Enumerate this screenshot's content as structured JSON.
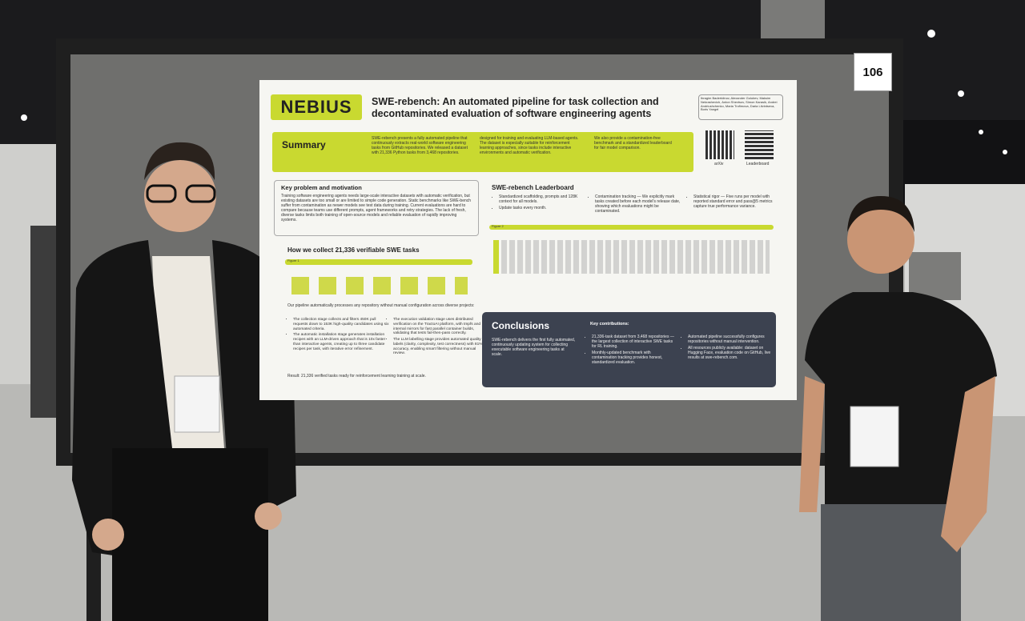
{
  "board_number": "106",
  "poster": {
    "logo": "NEBIUS",
    "title": "SWE-rebench: An automated pipeline for task collection and decontaminated evaluation of software engineering agents",
    "authors": "Ibragim Badertdinov, Alexander Golubev, Maksim Nekrashevich, Anton Shevtsov, Simon Karasik, Andrei Andriushchenko, Maria Trofimova, Daria Litvintseva, Boris Yangel",
    "summary": {
      "heading": "Summary",
      "columns": [
        "SWE-rebench presents a fully automated pipeline that continuously extracts real-world software engineering tasks from GitHub repositories. We released a dataset with 21,336 Python tasks from 3,468 repositories.",
        "designed for training and evaluating LLM-based agents. The dataset is especially suitable for reinforcement learning approaches, since tasks include interactive environments and automatic verification.",
        "We also provide a contamination-free benchmark and a standardized leaderboard for fair model comparison."
      ]
    },
    "qr_labels": [
      "arXiv",
      "Leaderboard"
    ],
    "motivation": {
      "heading": "Key problem and motivation",
      "text": "Training software engineering agents needs large-scale interactive datasets with automatic verification, but existing datasets are too small or are limited to simple code generation. Static benchmarks like SWE-bench suffer from contamination as newer models see test data during training. Current evaluations are hard to compare because teams use different prompts, agent frameworks and retry strategies. The lack of fresh, diverse tasks limits both training of open-source models and reliable evaluation of rapidly improving systems."
    },
    "collect": {
      "heading": "How we collect 21,336 verifiable SWE tasks",
      "figure": "Figure 1",
      "intro": "Our pipeline automatically processes any repository without manual configuration across diverse projects:",
      "bullets": [
        "The collection stage collects and filters 450K pull requests down to 153K high-quality candidates using six automated criteria.",
        "The automatic installation stage generates installation recipes with an LLM-driven approach that is 10x faster than interactive agents, creating up to three candidate recipes per task, with iterative error refinement.",
        "The execution validation stage uses distributed verification on the TractoAI platform, with tmpfs and internal mirrors for fast parallel container builds, validating that tests fail-then-pass correctly.",
        "The LLM labelling stage provides automated quality labels (clarity, complexity, test correctness) with 81% accuracy, enabling smart filtering without manual review."
      ],
      "result": "Result: 21,336 verified tasks ready for reinforcement learning training at scale."
    },
    "leaderboard": {
      "heading": "SWE-rebench Leaderboard",
      "figure": "Figure 2",
      "bullets": [
        "Standardized scaffolding, prompts and 128K context for all models.",
        "Update tasks every month.",
        "Contamination tracking — We explicitly mark tasks created before each model's release date, showing which evaluations might be contaminated.",
        "Statistical rigor — Five runs per model with reported standard error and pass@5 metrics capture true performance variance."
      ]
    },
    "conclusions": {
      "heading": "Conclusions",
      "text": "SWE-rebench delivers the first fully automated, continuously updating system for collecting executable software engineering tasks at scale.",
      "contrib_heading": "Key contributions:",
      "bullets": [
        "21,336-task dataset from 3,468 repositories — the largest collection of interactive SWE tasks for RL training.",
        "Monthly-updated benchmark with contamination tracking provides honest, standardized evaluation.",
        "Automated pipeline successfully configures repositories without manual intervention.",
        "All resources publicly available: dataset on Hugging Face, evaluation code on GitHub, live results at swe-rebench.com."
      ]
    }
  }
}
